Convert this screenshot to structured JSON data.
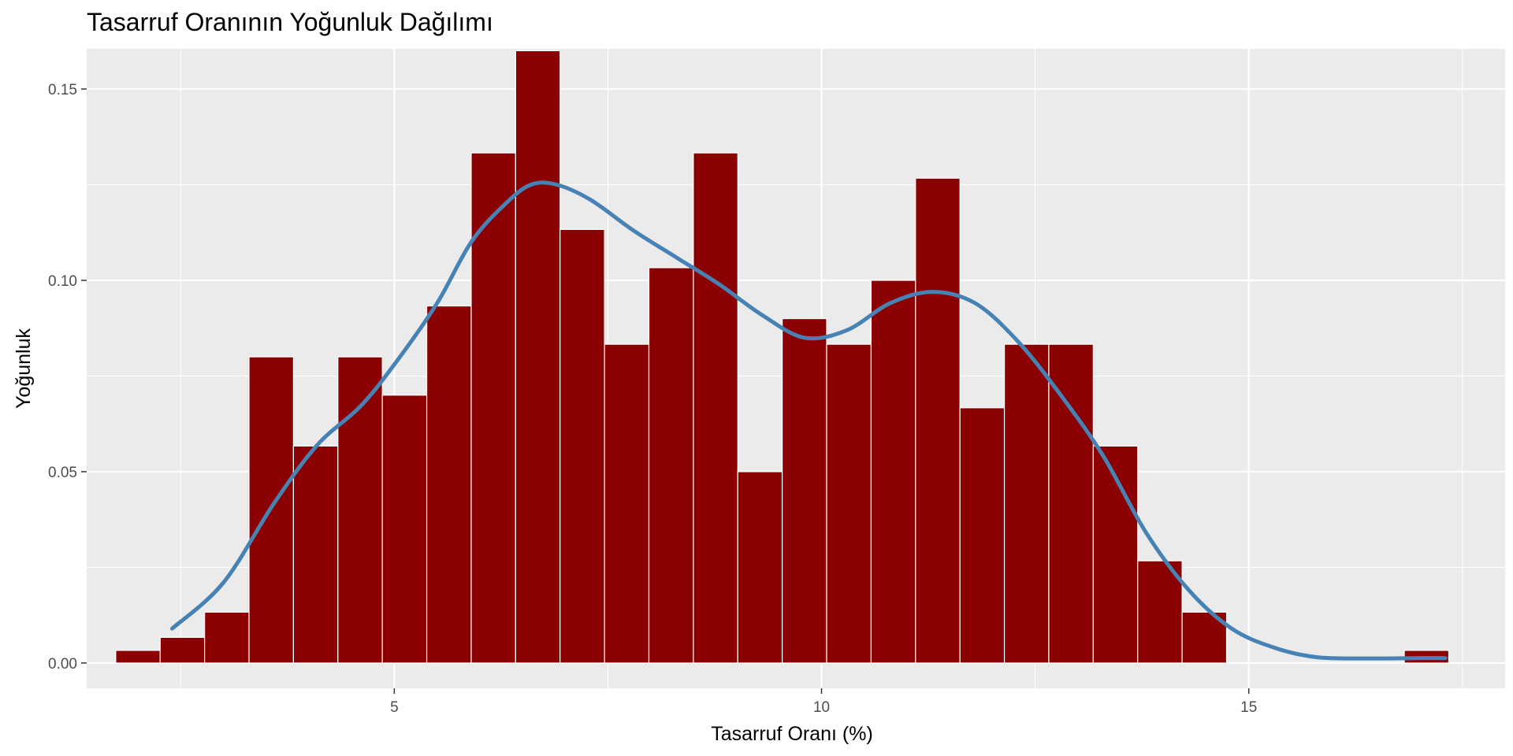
{
  "chart_data": {
    "type": "bar",
    "title": "Tasarruf Oranının Yoğunluk Dağılımı",
    "xlabel": "Tasarruf Oranı (%)",
    "ylabel": "Yoğunluk",
    "xlim": [
      1.4,
      18.0
    ],
    "ylim": [
      -0.0066,
      0.1605
    ],
    "x_ticks": [
      5,
      10,
      15
    ],
    "x_tick_labels": [
      "5",
      "10",
      "15"
    ],
    "y_ticks": [
      0.0,
      0.05,
      0.1,
      0.15
    ],
    "y_tick_labels": [
      "0.00",
      "0.05",
      "0.10",
      "0.15"
    ],
    "grid": true,
    "legend": "none",
    "colors": {
      "bars": "#8B0000",
      "bar_outline": "#ffffff",
      "density_line": "#4682B4",
      "panel_background": "#EBEBEB",
      "grid": "#ffffff"
    },
    "histogram": {
      "bin_width": 0.52,
      "bin_centers": [
        2.0,
        2.52,
        3.04,
        3.56,
        4.08,
        4.6,
        5.12,
        5.64,
        6.16,
        6.68,
        7.2,
        7.72,
        8.24,
        8.76,
        9.28,
        9.8,
        10.32,
        10.84,
        11.36,
        11.88,
        12.4,
        12.92,
        13.44,
        13.96,
        14.48,
        15.0,
        15.52,
        16.04,
        16.56,
        17.08
      ],
      "density": [
        0.0033,
        0.0067,
        0.0133,
        0.08,
        0.0567,
        0.08,
        0.07,
        0.0933,
        0.1333,
        0.16,
        0.1133,
        0.0833,
        0.1033,
        0.1333,
        0.05,
        0.09,
        0.0833,
        0.1,
        0.1267,
        0.0667,
        0.0833,
        0.0833,
        0.0567,
        0.0267,
        0.0133,
        0.0,
        0.0,
        0.0,
        0.0,
        0.0033
      ]
    },
    "density_curve": {
      "x": [
        2.4,
        3.0,
        3.6,
        4.1,
        4.6,
        5.0,
        5.5,
        5.9,
        6.3,
        6.6,
        6.9,
        7.3,
        7.8,
        8.3,
        8.8,
        9.3,
        9.8,
        10.3,
        10.8,
        11.3,
        11.8,
        12.3,
        12.8,
        13.3,
        13.8,
        14.3,
        14.8,
        15.3,
        15.8,
        16.4,
        17.0,
        17.3
      ],
      "y": [
        0.009,
        0.021,
        0.042,
        0.057,
        0.067,
        0.078,
        0.094,
        0.11,
        0.12,
        0.125,
        0.125,
        0.121,
        0.113,
        0.106,
        0.099,
        0.091,
        0.085,
        0.087,
        0.094,
        0.097,
        0.094,
        0.084,
        0.07,
        0.054,
        0.034,
        0.019,
        0.009,
        0.004,
        0.0015,
        0.0012,
        0.0013,
        0.0013
      ]
    }
  }
}
